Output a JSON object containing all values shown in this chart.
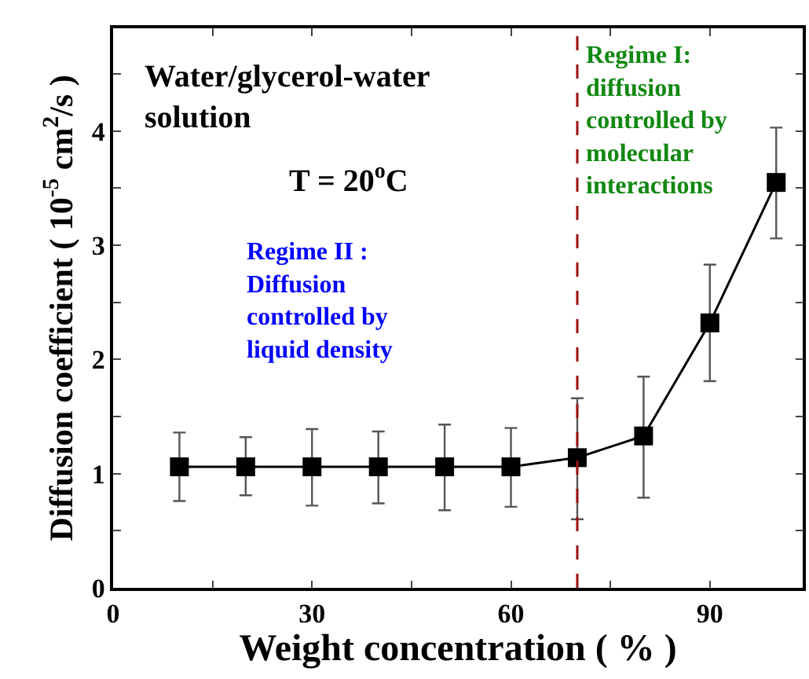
{
  "chart_data": {
    "type": "line",
    "xlabel": "Weight concentration ( % )",
    "ylabel": "Diffusion coefficient ( 10$^{-5}$ cm$^{2}$/s )",
    "x": [
      10,
      20,
      30,
      40,
      50,
      60,
      70,
      80,
      90,
      100
    ],
    "series": [
      {
        "color": "#000000",
        "values": [
          1.06,
          1.06,
          1.06,
          1.06,
          1.06,
          1.06,
          1.14,
          1.33,
          2.32,
          3.55
        ],
        "errors": [
          [
            0.76,
            1.36
          ],
          [
            0.81,
            1.32
          ],
          [
            0.72,
            1.39
          ],
          [
            0.74,
            1.37
          ],
          [
            0.68,
            1.43
          ],
          [
            0.71,
            1.4
          ],
          [
            0.6,
            1.66
          ],
          [
            0.79,
            1.85
          ],
          [
            1.81,
            2.83
          ],
          [
            3.06,
            4.03
          ]
        ]
      }
    ],
    "marker": "square",
    "line_style": "solid",
    "grid": false,
    "xlim": [
      0,
      104
    ],
    "ylim": [
      0,
      4.9
    ],
    "xticks": [
      0,
      {
        "value": 15,
        "label": null
      },
      30,
      {
        "value": 45,
        "label": null
      },
      60,
      {
        "value": 75,
        "label": null
      },
      90
    ],
    "yticks": [
      0,
      {
        "value": 0.5,
        "label": null
      },
      1,
      {
        "value": 1.5,
        "label": null
      },
      2,
      {
        "value": 2.5,
        "label": null
      },
      3,
      {
        "value": 3.5,
        "label": null
      },
      4,
      {
        "value": 4.5,
        "label": null
      }
    ],
    "ref_lines": [
      {
        "axis": "x",
        "value": 70,
        "color": "#a01010",
        "line_style": "dashed"
      }
    ],
    "annotations": [
      "Water/glycerol-water\nsolution",
      "T = 20$^{o}$C",
      "Regime II :\nDiffusion\ncontrolled by\nliquid density",
      "Regime I:\ndiffusion\ncontrolled by\nmolecular\ninteractions"
    ],
    "legend": false
  }
}
